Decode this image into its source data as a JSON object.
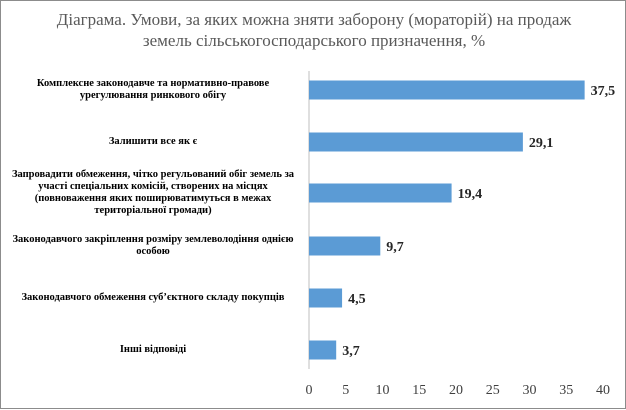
{
  "chart_data": {
    "type": "bar",
    "orientation": "horizontal",
    "title_lines": [
      "Діаграма. Умови, за яких можна зняти заборону (мораторій) на продаж",
      "земель сільськогосподарського призначення, %"
    ],
    "categories": [
      "Комплексне законодавче та нормативно-правове урегулювання ринкового обігу",
      "Залишити все як є",
      "Запровадити обмеження, чітко регульований обіг земель за участі спеціальних комісій, створених на місцях (повноваження яких поширюватимуться в межах територіальної громади)",
      "Законодавчого закріплення розміру землеволодіння однією особою",
      "Законодавчого обмеження суб’єктного складу покупців",
      "Інші відповіді"
    ],
    "values": [
      37.5,
      29.1,
      19.4,
      9.7,
      4.5,
      3.7
    ],
    "value_labels": [
      "37,5",
      "29,1",
      "19,4",
      "9,7",
      "4,5",
      "3,7"
    ],
    "x_ticks": [
      "0",
      "5",
      "10",
      "15",
      "20",
      "25",
      "30",
      "35",
      "40"
    ],
    "xlim": [
      0,
      40
    ],
    "bar_color": "#5b9bd5",
    "xlabel": "",
    "ylabel": "",
    "grid": false
  }
}
